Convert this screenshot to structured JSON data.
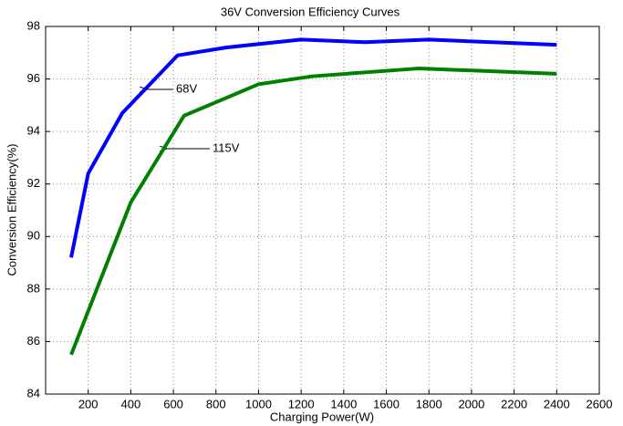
{
  "chart_data": {
    "type": "line",
    "title": "36V Conversion Efficiency Curves",
    "xlabel": "Charging Power(W)",
    "ylabel": "Conversion Efficiency(%)",
    "xlim": [
      0,
      2600
    ],
    "xticks": [
      200,
      400,
      600,
      800,
      1000,
      1200,
      1400,
      1600,
      1800,
      2000,
      2200,
      2400,
      2600
    ],
    "ylim": [
      84,
      98
    ],
    "yticks": [
      84,
      86,
      88,
      90,
      92,
      94,
      96,
      98
    ],
    "grid": true,
    "series": [
      {
        "name": "68V",
        "color": "#0000ff",
        "x": [
          120,
          200,
          360,
          620,
          850,
          1200,
          1500,
          1800,
          2400
        ],
        "values": [
          89.2,
          92.4,
          94.7,
          96.9,
          97.2,
          97.5,
          97.4,
          97.5,
          97.3
        ]
      },
      {
        "name": "115V",
        "color": "#008000",
        "x": [
          120,
          400,
          650,
          1000,
          1250,
          1750,
          2400
        ],
        "values": [
          85.5,
          91.3,
          94.6,
          95.8,
          96.1,
          96.4,
          96.2
        ]
      }
    ]
  }
}
